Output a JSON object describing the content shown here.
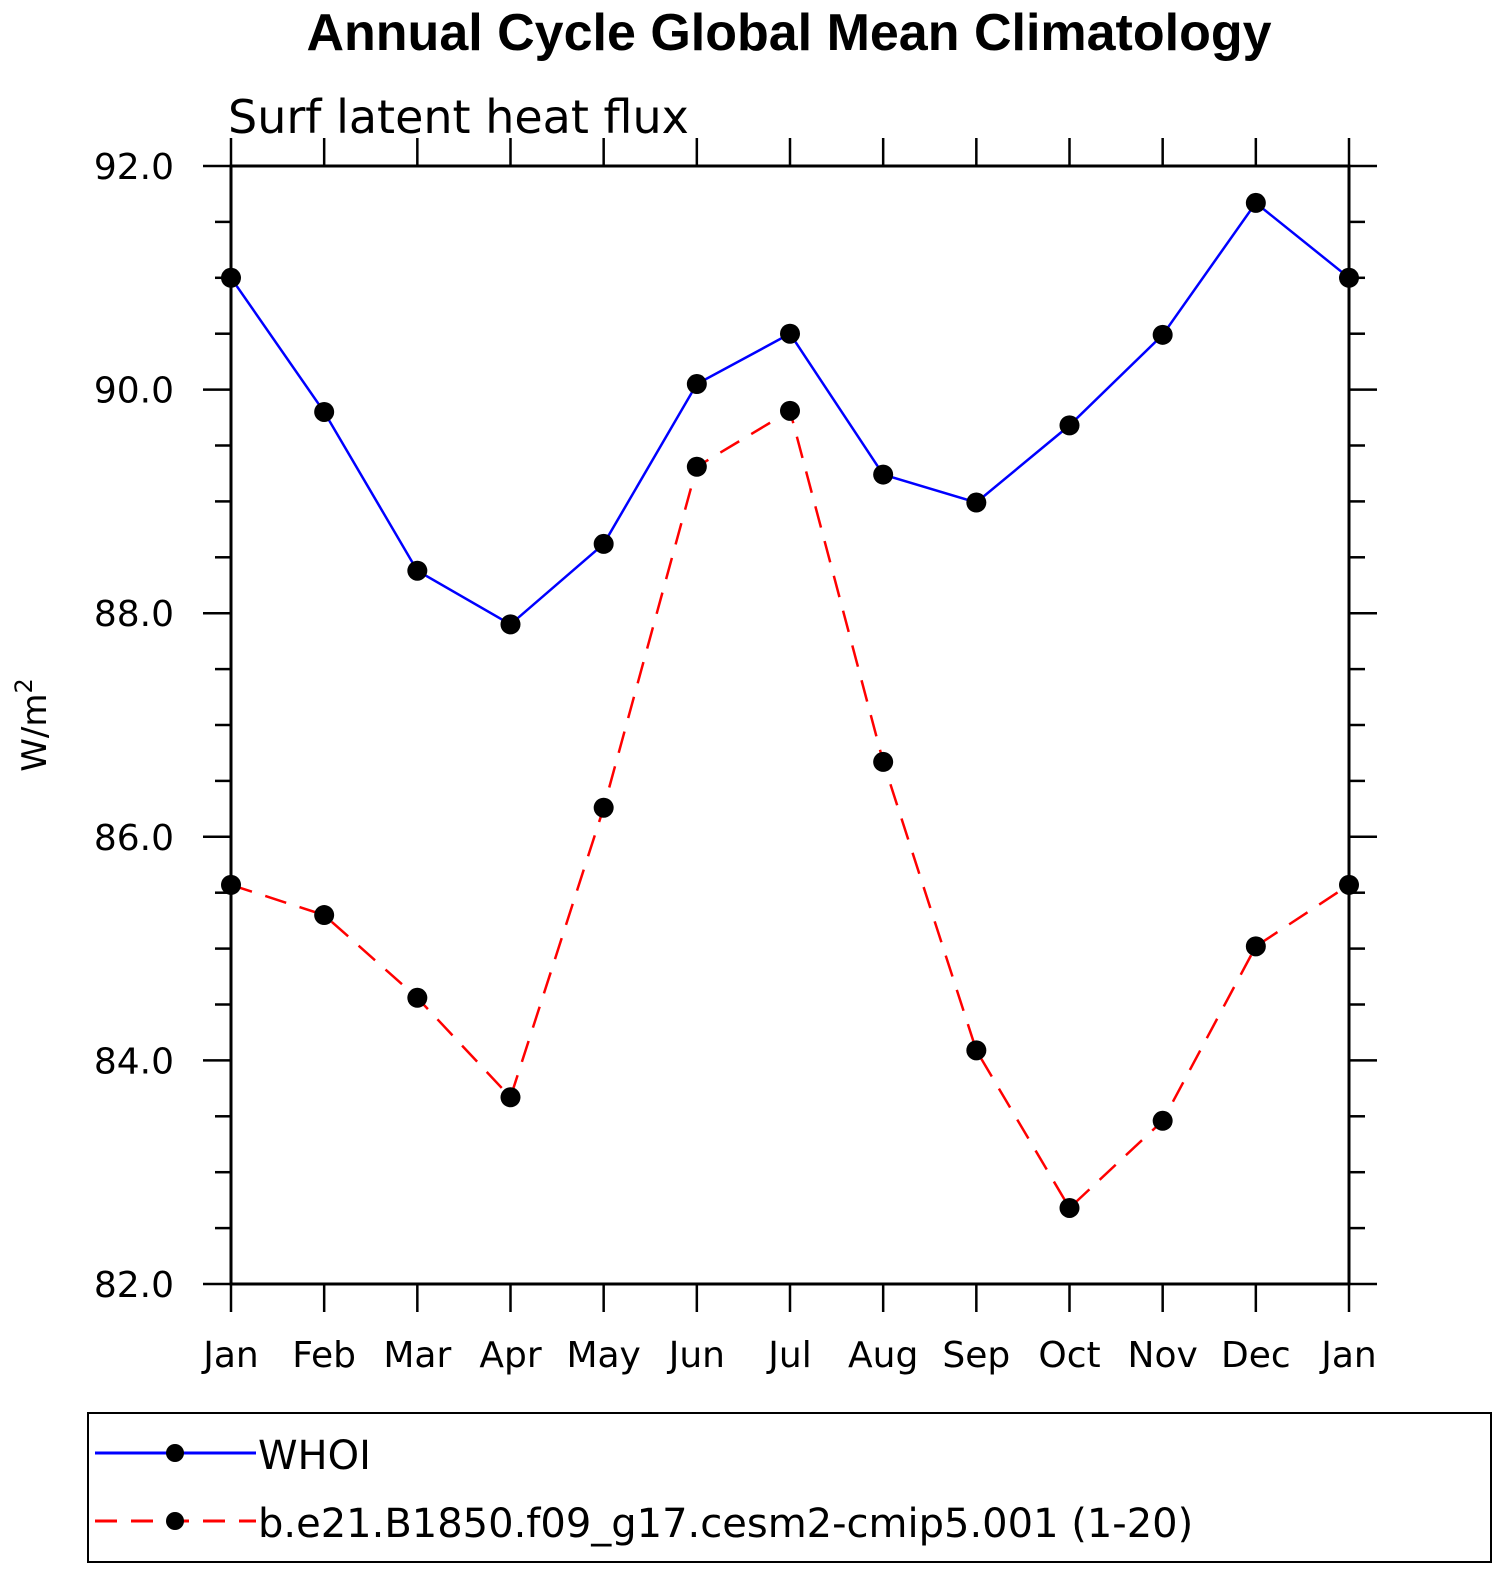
{
  "chart_data": {
    "type": "line",
    "title": "Annual Cycle Global Mean Climatology",
    "subtitle": "Surf latent heat flux",
    "xlabel": "",
    "ylabel": "W/m",
    "ylabel_sup": "2",
    "categories": [
      "Jan",
      "Feb",
      "Mar",
      "Apr",
      "May",
      "Jun",
      "Jul",
      "Aug",
      "Sep",
      "Oct",
      "Nov",
      "Dec",
      "Jan"
    ],
    "ylim": [
      82.0,
      92.0
    ],
    "yticks": [
      "82.0",
      "84.0",
      "86.0",
      "88.0",
      "90.0",
      "92.0"
    ],
    "ytick_values": [
      82,
      84,
      86,
      88,
      90,
      92
    ],
    "y_minor_step": 0.5,
    "grid": false,
    "legend_position": "bottom",
    "series": [
      {
        "name": "WHOI",
        "color": "#0000ff",
        "line_style": "solid",
        "marker": "filled-circle",
        "values": [
          91.0,
          89.8,
          88.38,
          87.9,
          88.62,
          90.05,
          90.5,
          89.24,
          88.99,
          89.68,
          90.49,
          91.67,
          91.0
        ]
      },
      {
        "name": "b.e21.B1850.f09_g17.cesm2-cmip5.001 (1-20)",
        "color": "#ff0000",
        "line_style": "dashed",
        "marker": "filled-circle",
        "values": [
          85.57,
          85.3,
          84.56,
          83.67,
          86.26,
          89.31,
          89.81,
          86.67,
          84.09,
          82.68,
          83.46,
          85.02,
          85.57
        ]
      }
    ]
  }
}
